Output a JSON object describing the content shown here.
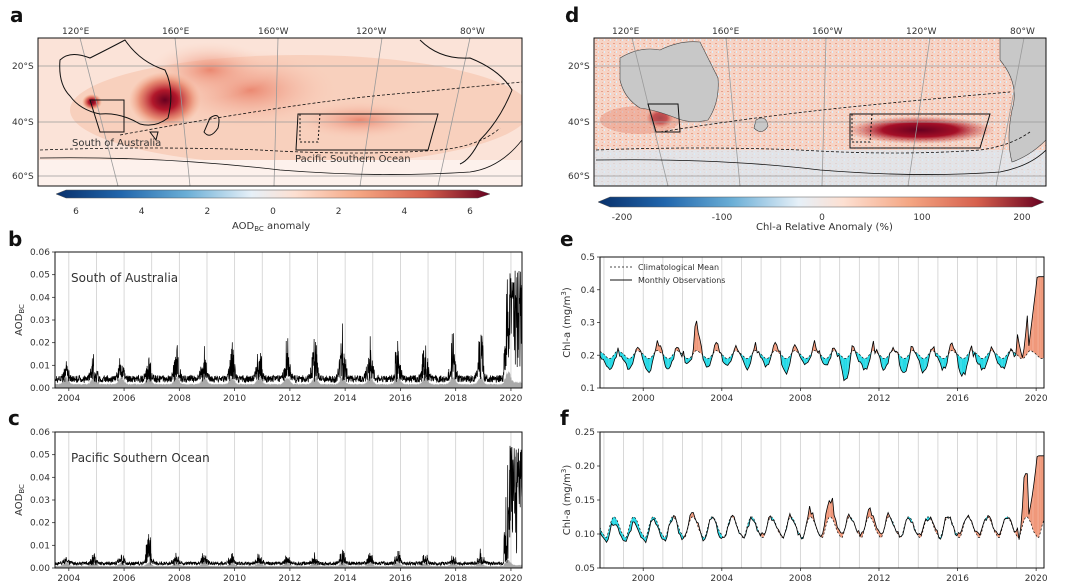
{
  "panels": {
    "a": {
      "letter": "a",
      "lon_labels": [
        "120°E",
        "160°E",
        "160°W",
        "120°W",
        "80°W"
      ],
      "lat_labels": [
        "20°S",
        "40°S",
        "60°S"
      ],
      "region_labels": [
        "South of Australia",
        "Pacific Southern Ocean"
      ],
      "colorbar": {
        "ticks": [
          "6",
          "4",
          "2",
          "0",
          "2",
          "4",
          "6"
        ],
        "label": "AOD",
        "label_sub": "BC",
        "label_suffix": " anomaly"
      }
    },
    "d": {
      "letter": "d",
      "lon_labels": [
        "120°E",
        "160°E",
        "160°W",
        "120°W",
        "80°W"
      ],
      "lat_labels": [
        "20°S",
        "40°S",
        "60°S"
      ],
      "colorbar": {
        "ticks": [
          "-200",
          "-100",
          "0",
          "100",
          "200"
        ],
        "label": "Chl-a Relative Anomaly (%)"
      }
    },
    "b": {
      "letter": "b"
    },
    "c": {
      "letter": "c"
    },
    "e": {
      "letter": "e"
    },
    "f": {
      "letter": "f"
    }
  },
  "chart_data": [
    {
      "panel": "b",
      "type": "area",
      "title": "South of Australia",
      "ylabel": "AOD",
      "ylabel_sub": "BC",
      "xlim": [
        2003.5,
        2020.4
      ],
      "ylim": [
        0,
        0.06
      ],
      "yticks": [
        "0.00",
        "0.01",
        "0.02",
        "0.03",
        "0.04",
        "0.05",
        "0.06"
      ],
      "xticks": [
        "2004",
        "2006",
        "2008",
        "2010",
        "2012",
        "2014",
        "2016",
        "2018",
        "2020"
      ],
      "grid": "vertical",
      "years": [
        2004,
        2005,
        2006,
        2007,
        2008,
        2009,
        2010,
        2011,
        2012,
        2013,
        2014,
        2015,
        2016,
        2017,
        2018,
        2019,
        2020
      ],
      "yearly_peak": [
        0.013,
        0.015,
        0.014,
        0.016,
        0.021,
        0.018,
        0.022,
        0.02,
        0.023,
        0.025,
        0.028,
        0.025,
        0.024,
        0.027,
        0.026,
        0.03,
        0.053
      ],
      "yearly_base": [
        0.004,
        0.004,
        0.004,
        0.004,
        0.004,
        0.004,
        0.004,
        0.004,
        0.004,
        0.004,
        0.004,
        0.004,
        0.004,
        0.004,
        0.004,
        0.004,
        0.006
      ]
    },
    {
      "panel": "c",
      "type": "area",
      "title": "Pacific Southern Ocean",
      "ylabel": "AOD",
      "ylabel_sub": "BC",
      "xlim": [
        2003.5,
        2020.4
      ],
      "ylim": [
        0,
        0.06
      ],
      "yticks": [
        "0.00",
        "0.01",
        "0.02",
        "0.03",
        "0.04",
        "0.05",
        "0.06"
      ],
      "xticks": [
        "2004",
        "2006",
        "2008",
        "2010",
        "2012",
        "2014",
        "2016",
        "2018",
        "2020"
      ],
      "grid": "vertical",
      "years": [
        2004,
        2005,
        2006,
        2007,
        2008,
        2009,
        2010,
        2011,
        2012,
        2013,
        2014,
        2015,
        2016,
        2017,
        2018,
        2019,
        2020
      ],
      "yearly_peak": [
        0.006,
        0.006,
        0.007,
        0.017,
        0.007,
        0.007,
        0.008,
        0.007,
        0.007,
        0.007,
        0.008,
        0.007,
        0.008,
        0.007,
        0.007,
        0.01,
        0.054
      ],
      "yearly_base": [
        0.002,
        0.002,
        0.002,
        0.002,
        0.002,
        0.002,
        0.002,
        0.002,
        0.002,
        0.002,
        0.002,
        0.002,
        0.002,
        0.002,
        0.002,
        0.002,
        0.003
      ]
    },
    {
      "panel": "e",
      "type": "line",
      "ylabel": "Chl-a (mg/m",
      "ylabel_sup": "3",
      "ylabel_suffix": ")",
      "xlim": [
        1997.8,
        2020.4
      ],
      "ylim": [
        0.1,
        0.5
      ],
      "yticks": [
        "0.1",
        "0.2",
        "0.3",
        "0.4",
        "0.5"
      ],
      "xticks": [
        "2000",
        "2004",
        "2008",
        "2012",
        "2016",
        "2020"
      ],
      "grid": "vertical",
      "legend": {
        "placement": "top-left",
        "entries": [
          "Climatological Mean",
          "Monthly Observations"
        ]
      },
      "climatology_monthly": [
        0.205,
        0.2,
        0.195,
        0.19,
        0.19,
        0.192,
        0.198,
        0.205,
        0.212,
        0.215,
        0.212,
        0.208
      ],
      "yearly_peak": [
        0.21,
        0.22,
        0.24,
        0.26,
        0.24,
        0.32,
        0.25,
        0.23,
        0.24,
        0.25,
        0.26,
        0.25,
        0.23,
        0.25,
        0.24,
        0.25,
        0.24,
        0.25,
        0.25,
        0.24,
        0.23,
        0.23,
        0.44
      ],
      "yearly_trough": [
        0.17,
        0.16,
        0.16,
        0.15,
        0.16,
        0.17,
        0.17,
        0.17,
        0.16,
        0.17,
        0.15,
        0.17,
        0.17,
        0.13,
        0.16,
        0.16,
        0.15,
        0.15,
        0.16,
        0.14,
        0.16,
        0.16,
        0.2
      ],
      "colors": {
        "above": "#f0987a",
        "below": "#23d9e6"
      }
    },
    {
      "panel": "f",
      "type": "line",
      "ylabel": "Chl-a (mg/m",
      "ylabel_sup": "3",
      "ylabel_suffix": ")",
      "xlim": [
        1997.8,
        2020.4
      ],
      "ylim": [
        0.05,
        0.25
      ],
      "yticks": [
        "0.05",
        "0.10",
        "0.15",
        "0.20",
        "0.25"
      ],
      "xticks": [
        "2000",
        "2004",
        "2008",
        "2012",
        "2016",
        "2020"
      ],
      "grid": "vertical",
      "climatology_monthly": [
        0.1,
        0.095,
        0.095,
        0.102,
        0.112,
        0.12,
        0.125,
        0.125,
        0.122,
        0.117,
        0.11,
        0.103
      ],
      "yearly_peak": [
        0.12,
        0.12,
        0.12,
        0.125,
        0.13,
        0.14,
        0.13,
        0.13,
        0.125,
        0.13,
        0.13,
        0.14,
        0.16,
        0.13,
        0.14,
        0.13,
        0.13,
        0.13,
        0.13,
        0.13,
        0.13,
        0.13,
        0.215
      ],
      "yearly_trough": [
        0.09,
        0.09,
        0.09,
        0.09,
        0.09,
        0.095,
        0.09,
        0.095,
        0.095,
        0.1,
        0.095,
        0.095,
        0.1,
        0.1,
        0.1,
        0.1,
        0.095,
        0.1,
        0.095,
        0.1,
        0.1,
        0.1,
        0.1
      ],
      "colors": {
        "above": "#f0987a",
        "below": "#23d9e6"
      }
    }
  ]
}
